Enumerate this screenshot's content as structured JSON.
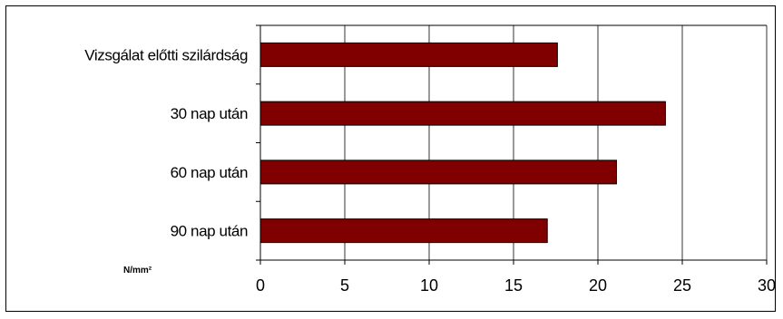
{
  "chart_data": {
    "type": "bar",
    "orientation": "horizontal",
    "categories": [
      "Vizsgálat előtti szilárdság",
      "30 nap után",
      "60 nap után",
      "90 nap után"
    ],
    "values": [
      17.6,
      24.0,
      21.1,
      17.0
    ],
    "xlim": [
      0,
      30
    ],
    "xticks": [
      "0",
      "5",
      "10",
      "15",
      "20",
      "25",
      "30"
    ],
    "unit_label": "N/mm²",
    "grid": true,
    "legend": "none",
    "bar_color": "#800000"
  }
}
